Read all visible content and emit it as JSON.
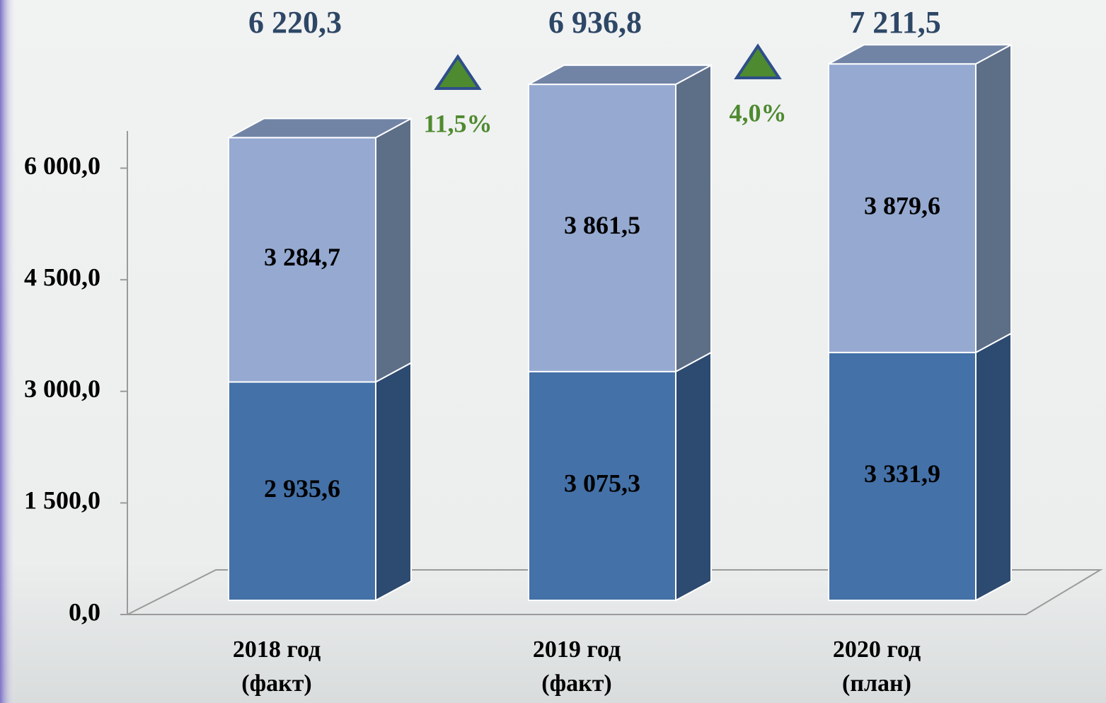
{
  "chart_data": {
    "type": "bar",
    "stacked": true,
    "categories": [
      [
        "2018 год",
        "(факт)"
      ],
      [
        "2019 год",
        "(факт)"
      ],
      [
        "2020 год",
        "(план)"
      ]
    ],
    "series": [
      {
        "color": "#4471a8",
        "side_color": "#2d4a70",
        "values": [
          2935.6,
          3075.3,
          3331.9
        ],
        "value_labels": [
          "2 935,6",
          "3 075,3",
          "3 331,9"
        ]
      },
      {
        "color": "#95a9d1",
        "side_color": "#5d6e87",
        "top_color": "#7184a6",
        "values": [
          3284.7,
          3861.5,
          3879.6
        ],
        "value_labels": [
          "3 284,7",
          "3 861,5",
          "3 879,6"
        ]
      }
    ],
    "totals": [
      {
        "value": 6220.3,
        "label": "6 220,3"
      },
      {
        "value": 6936.8,
        "label": "6 936,8"
      },
      {
        "value": 7211.5,
        "label": "7 211,5"
      }
    ],
    "growth": [
      {
        "value": 11.5,
        "label": "11,5%"
      },
      {
        "value": 4.0,
        "label": "4,0%"
      }
    ],
    "growth_color": "#4e8a2f",
    "ylim": [
      0,
      6500
    ],
    "yticks": [
      {
        "value": 0,
        "label": "0,0"
      },
      {
        "value": 1500,
        "label": "1 500,0"
      },
      {
        "value": 3000,
        "label": "3 000,0"
      },
      {
        "value": 4500,
        "label": "4 500,0"
      },
      {
        "value": 6000,
        "label": "6 000,0"
      }
    ]
  }
}
